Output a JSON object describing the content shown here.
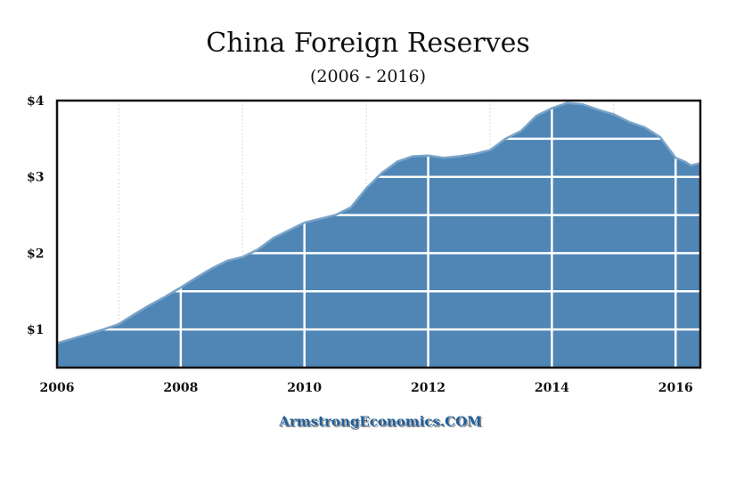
{
  "colors": {
    "area_fill": "#4f86b6",
    "area_line": "#7aa3c8",
    "grid": "#ffffff",
    "background_grid": "#d9d9d9",
    "frame": "#111111",
    "footer": "#1f5f99",
    "footer_shadow": "#8c8c8c"
  },
  "footer": {
    "text": "ArmstrongEconomics.COM"
  },
  "chart_data": {
    "type": "area",
    "title": "China Foreign Reserves",
    "subtitle": "(2006 - 2016)",
    "xlabel": "",
    "ylabel": "",
    "xlim": [
      2006.0,
      2016.4
    ],
    "ylim": [
      0.5,
      4.0
    ],
    "x_ticks": [
      2006,
      2008,
      2010,
      2012,
      2014,
      2016
    ],
    "x_tick_labels": [
      "2006",
      "2008",
      "2010",
      "2012",
      "2014",
      "2016"
    ],
    "y_ticks": [
      1,
      2,
      3,
      4
    ],
    "y_tick_labels": [
      "$1",
      "$2",
      "$3",
      "$4"
    ],
    "grid": true,
    "x": [
      2006.0,
      2006.25,
      2006.5,
      2006.75,
      2007.0,
      2007.25,
      2007.5,
      2007.75,
      2008.0,
      2008.25,
      2008.5,
      2008.75,
      2009.0,
      2009.25,
      2009.5,
      2009.75,
      2010.0,
      2010.25,
      2010.5,
      2010.75,
      2011.0,
      2011.25,
      2011.5,
      2011.75,
      2012.0,
      2012.25,
      2012.5,
      2012.75,
      2013.0,
      2013.25,
      2013.5,
      2013.75,
      2014.0,
      2014.25,
      2014.5,
      2014.75,
      2015.0,
      2015.25,
      2015.5,
      2015.75,
      2016.0,
      2016.15,
      2016.25,
      2016.4
    ],
    "values": [
      0.82,
      0.88,
      0.94,
      1.0,
      1.07,
      1.2,
      1.32,
      1.43,
      1.55,
      1.68,
      1.8,
      1.9,
      1.95,
      2.05,
      2.2,
      2.3,
      2.4,
      2.45,
      2.5,
      2.6,
      2.85,
      3.05,
      3.2,
      3.27,
      3.28,
      3.25,
      3.27,
      3.3,
      3.35,
      3.5,
      3.6,
      3.8,
      3.9,
      3.97,
      3.95,
      3.88,
      3.82,
      3.72,
      3.65,
      3.52,
      3.25,
      3.2,
      3.15,
      3.18
    ]
  }
}
